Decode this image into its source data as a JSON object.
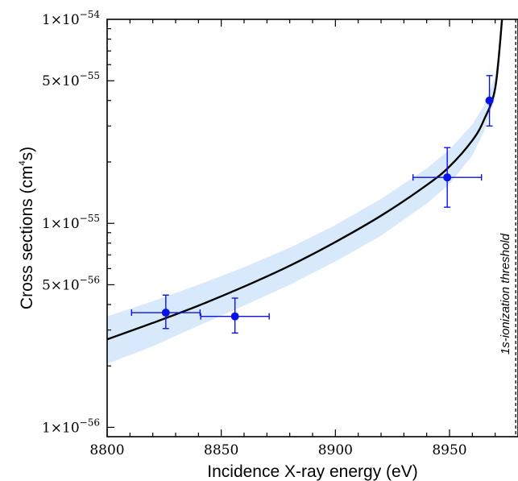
{
  "chart_data": {
    "type": "scatter",
    "xlabel": "Incidence X-ray energy (eV)",
    "ylabel": "Cross sections (cm4s)",
    "ylabel_parts": {
      "prefix": "Cross sections (cm",
      "sup": "4",
      "suffix": "s)"
    },
    "xlim": [
      8800,
      8980
    ],
    "ylim": [
      9e-57,
      1e-54
    ],
    "yscale": "log",
    "x_ticks": [
      8800,
      8850,
      8900,
      8950
    ],
    "y_ticks": [
      {
        "value": 1e-54,
        "mantissa": "1",
        "exponent": "-54"
      },
      {
        "value": 5e-55,
        "mantissa": "5",
        "exponent": "-55"
      },
      {
        "value": 1e-55,
        "mantissa": "1",
        "exponent": "-55"
      },
      {
        "value": 5e-56,
        "mantissa": "5",
        "exponent": "-56"
      },
      {
        "value": 1e-56,
        "mantissa": "1",
        "exponent": "-56"
      }
    ],
    "points": [
      {
        "x": 8825.7,
        "y": 3.65e-56,
        "xerr": 15,
        "ylow": 3.05e-56,
        "yhigh": 4.45e-56
      },
      {
        "x": 8856.0,
        "y": 3.5e-56,
        "xerr": 15,
        "ylow": 2.9e-56,
        "yhigh": 4.3e-56
      },
      {
        "x": 8949.0,
        "y": 1.68e-55,
        "xerr": 15,
        "ylow": 1.2e-55,
        "yhigh": 2.35e-55
      },
      {
        "x": 8967.5,
        "y": 4e-55,
        "xerr": 0,
        "ylow": 3e-55,
        "yhigh": 5.3e-55
      }
    ],
    "fit_curve": {
      "x": [
        8800,
        8820,
        8840,
        8860,
        8880,
        8900,
        8920,
        8940,
        8950,
        8960,
        8965,
        8970,
        8973
      ],
      "y": [
        2.7e-56,
        3.25e-56,
        3.95e-56,
        4.9e-56,
        6.2e-56,
        8.1e-56,
        1.09e-55,
        1.54e-55,
        1.9e-55,
        2.55e-55,
        3.2e-55,
        4.6e-55,
        1e-54
      ]
    },
    "confidence_band": {
      "x": [
        8800,
        8820,
        8840,
        8860,
        8880,
        8900,
        8920,
        8940,
        8950,
        8960,
        8965,
        8970,
        8973
      ],
      "lower": [
        2.05e-56,
        2.5e-56,
        3.15e-56,
        3.95e-56,
        5e-56,
        6.5e-56,
        8.7e-56,
        1.25e-55,
        1.56e-55,
        2.15e-55,
        2.8e-55,
        4.1e-55,
        9e-55
      ],
      "upper": [
        3.5e-56,
        4.15e-56,
        5e-56,
        6.1e-56,
        7.6e-56,
        9.8e-56,
        1.32e-55,
        1.86e-55,
        2.3e-55,
        3.05e-55,
        3.75e-55,
        5.3e-55,
        1e-54
      ]
    },
    "threshold": {
      "x": 8979,
      "label": "1s-ionization threshold"
    },
    "colors": {
      "points": "#0a12e6",
      "curve": "#000000",
      "band": "#d8e9fb"
    },
    "grid": false
  }
}
